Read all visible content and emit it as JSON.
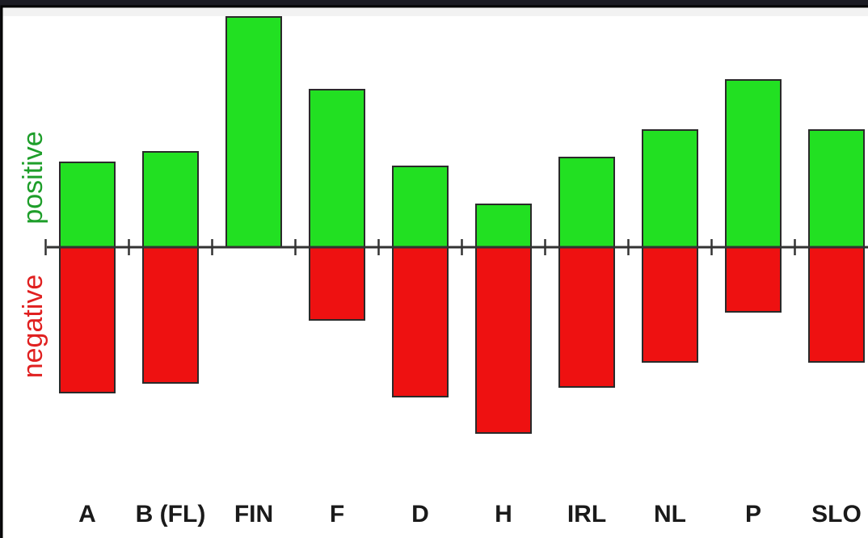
{
  "chart_data": {
    "type": "bar",
    "categories": [
      "A",
      "B (FL)",
      "FIN",
      "F",
      "D",
      "H",
      "IRL",
      "NL",
      "P",
      "SLO"
    ],
    "series": [
      {
        "name": "positive",
        "values": [
          105,
          118,
          285,
          195,
          100,
          53,
          111,
          145,
          207,
          145
        ]
      },
      {
        "name": "negative",
        "values": [
          -180,
          -168,
          0,
          -90,
          -185,
          -230,
          -173,
          -142,
          -80,
          -142
        ]
      }
    ],
    "ylim": [
      -300,
      300
    ],
    "colors": {
      "positive": "#22e022",
      "negative": "#ee1111",
      "positive_label": "#1e9e2a",
      "negative_label": "#e02020"
    },
    "grid": false,
    "side_labels": {
      "positive": "positive",
      "negative": "negative"
    }
  }
}
